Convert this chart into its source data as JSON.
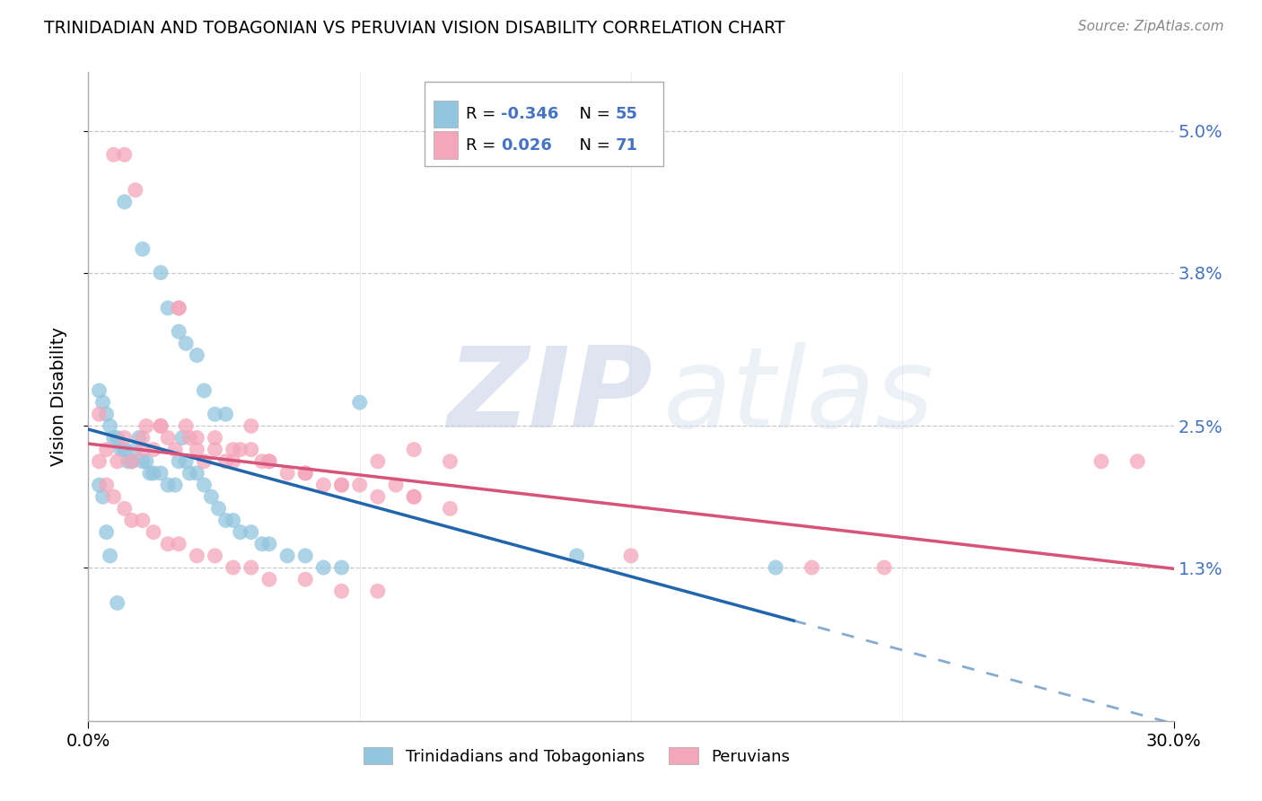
{
  "title": "TRINIDADIAN AND TOBAGONIAN VS PERUVIAN VISION DISABILITY CORRELATION CHART",
  "source": "Source: ZipAtlas.com",
  "ylabel": "Vision Disability",
  "yticks": [
    "1.3%",
    "2.5%",
    "3.8%",
    "5.0%"
  ],
  "ytick_vals": [
    0.013,
    0.025,
    0.038,
    0.05
  ],
  "xlim": [
    0.0,
    0.3
  ],
  "ylim": [
    0.0,
    0.055
  ],
  "legend_blue_r": "-0.346",
  "legend_blue_n": "55",
  "legend_pink_r": "0.026",
  "legend_pink_n": "71",
  "blue_color": "#92c5de",
  "pink_color": "#f4a6bb",
  "blue_line_color": "#2166ac",
  "pink_line_color": "#d6547a",
  "watermark_zip": "ZIP",
  "watermark_atlas": "atlas",
  "blue_scatter_x": [
    0.01,
    0.015,
    0.02,
    0.022,
    0.025,
    0.027,
    0.03,
    0.032,
    0.035,
    0.038,
    0.003,
    0.004,
    0.005,
    0.006,
    0.007,
    0.008,
    0.009,
    0.01,
    0.011,
    0.012,
    0.013,
    0.014,
    0.015,
    0.016,
    0.017,
    0.018,
    0.02,
    0.022,
    0.024,
    0.025,
    0.026,
    0.027,
    0.028,
    0.03,
    0.032,
    0.034,
    0.036,
    0.038,
    0.04,
    0.042,
    0.045,
    0.048,
    0.05,
    0.055,
    0.06,
    0.065,
    0.07,
    0.075,
    0.003,
    0.004,
    0.005,
    0.006,
    0.008,
    0.19,
    0.135
  ],
  "blue_scatter_y": [
    0.044,
    0.04,
    0.038,
    0.035,
    0.033,
    0.032,
    0.031,
    0.028,
    0.026,
    0.026,
    0.028,
    0.027,
    0.026,
    0.025,
    0.024,
    0.024,
    0.023,
    0.023,
    0.022,
    0.022,
    0.023,
    0.024,
    0.022,
    0.022,
    0.021,
    0.021,
    0.021,
    0.02,
    0.02,
    0.022,
    0.024,
    0.022,
    0.021,
    0.021,
    0.02,
    0.019,
    0.018,
    0.017,
    0.017,
    0.016,
    0.016,
    0.015,
    0.015,
    0.014,
    0.014,
    0.013,
    0.013,
    0.027,
    0.02,
    0.019,
    0.016,
    0.014,
    0.01,
    0.013,
    0.014
  ],
  "pink_scatter_x": [
    0.003,
    0.005,
    0.007,
    0.008,
    0.01,
    0.012,
    0.013,
    0.015,
    0.016,
    0.018,
    0.02,
    0.022,
    0.024,
    0.025,
    0.027,
    0.028,
    0.03,
    0.032,
    0.035,
    0.038,
    0.04,
    0.042,
    0.045,
    0.048,
    0.05,
    0.055,
    0.06,
    0.065,
    0.07,
    0.075,
    0.08,
    0.085,
    0.09,
    0.01,
    0.015,
    0.02,
    0.025,
    0.03,
    0.035,
    0.04,
    0.045,
    0.05,
    0.06,
    0.07,
    0.08,
    0.09,
    0.1,
    0.15,
    0.2,
    0.22,
    0.003,
    0.005,
    0.007,
    0.01,
    0.012,
    0.015,
    0.018,
    0.022,
    0.025,
    0.03,
    0.035,
    0.04,
    0.045,
    0.05,
    0.06,
    0.07,
    0.08,
    0.09,
    0.1,
    0.28,
    0.29
  ],
  "pink_scatter_y": [
    0.026,
    0.023,
    0.048,
    0.022,
    0.048,
    0.022,
    0.045,
    0.024,
    0.025,
    0.023,
    0.025,
    0.024,
    0.023,
    0.035,
    0.025,
    0.024,
    0.023,
    0.022,
    0.024,
    0.022,
    0.023,
    0.023,
    0.025,
    0.022,
    0.022,
    0.021,
    0.021,
    0.02,
    0.02,
    0.02,
    0.022,
    0.02,
    0.019,
    0.024,
    0.023,
    0.025,
    0.035,
    0.024,
    0.023,
    0.022,
    0.023,
    0.022,
    0.021,
    0.02,
    0.019,
    0.019,
    0.018,
    0.014,
    0.013,
    0.013,
    0.022,
    0.02,
    0.019,
    0.018,
    0.017,
    0.017,
    0.016,
    0.015,
    0.015,
    0.014,
    0.014,
    0.013,
    0.013,
    0.012,
    0.012,
    0.011,
    0.011,
    0.023,
    0.022,
    0.022,
    0.022
  ]
}
